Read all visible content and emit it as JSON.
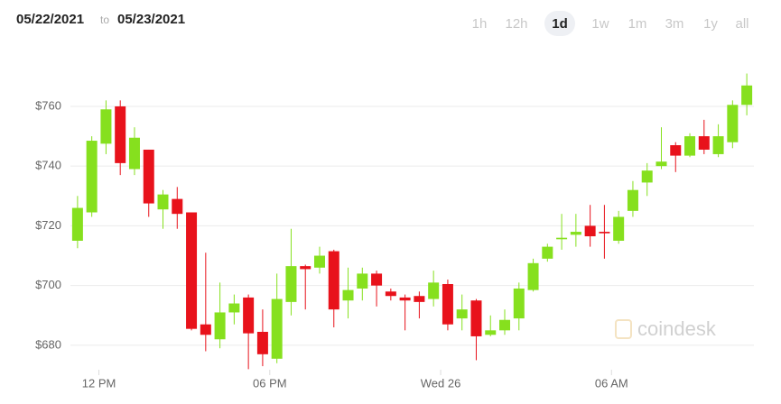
{
  "chart_data": {
    "type": "candlestick",
    "date_range": [
      "05/22/2021",
      "to",
      "05/23/2021"
    ],
    "range_options": [
      "1h",
      "12h",
      "1d",
      "1w",
      "1m",
      "3m",
      "1y",
      "all"
    ],
    "selected_range": "1d",
    "watermark": "coindesk",
    "up_color": "#86e01e",
    "down_color": "#e8121b",
    "grid": true,
    "ylim": [
      670,
      777.5
    ],
    "yticks": [
      {
        "value": 680,
        "label": "$680"
      },
      {
        "value": 700,
        "label": "$700"
      },
      {
        "value": 720,
        "label": "$720"
      },
      {
        "value": 740,
        "label": "$740"
      },
      {
        "value": 760,
        "label": "$760"
      }
    ],
    "xlim": [
      -0.5,
      47.5
    ],
    "xticks": [
      {
        "value": 1.5,
        "label": "12 PM"
      },
      {
        "value": 13.5,
        "label": "06 PM"
      },
      {
        "value": 25.5,
        "label": "Wed 26"
      },
      {
        "value": 37.5,
        "label": "06 AM"
      }
    ],
    "open": [
      715,
      724.5,
      747.5,
      760,
      739,
      745.5,
      725.5,
      729,
      724.5,
      687,
      682,
      691,
      696,
      684.5,
      675.5,
      694.5,
      706.5,
      706,
      711.5,
      695,
      699,
      704,
      698,
      696,
      696.5,
      695.5,
      700.5,
      689,
      695,
      683.5,
      685,
      689,
      698.5,
      709,
      715.5,
      717,
      720,
      718,
      715,
      725,
      734.5,
      740,
      747,
      743.5,
      750,
      744,
      748,
      760.5
    ],
    "high": [
      730,
      750,
      762,
      762,
      753,
      745.5,
      732,
      733,
      724.5,
      711,
      701,
      697,
      697,
      692,
      704,
      719,
      707,
      713,
      712,
      706,
      706,
      705,
      699,
      697,
      698,
      705,
      702,
      697,
      695.5,
      690,
      692,
      701,
      709,
      714,
      724,
      724,
      727,
      727,
      725,
      735,
      741,
      753,
      748,
      751,
      755.5,
      754,
      762,
      771
    ],
    "low": [
      712.5,
      723,
      744,
      737,
      737,
      723,
      719,
      719,
      685,
      678,
      679,
      687,
      672,
      673,
      674,
      690,
      692,
      704,
      686,
      689,
      695,
      693,
      695,
      685,
      689,
      693,
      685,
      685,
      675,
      683,
      683.5,
      685,
      698,
      708,
      712,
      713,
      713,
      709,
      714,
      723,
      730,
      739,
      738,
      743,
      744,
      743,
      746,
      757
    ],
    "close": [
      726,
      748.5,
      759,
      741,
      749.5,
      727.5,
      730.5,
      724,
      685.5,
      683.5,
      691,
      694,
      684,
      677,
      695.5,
      706.5,
      705.5,
      710,
      692,
      698.5,
      704,
      700,
      696.5,
      695,
      694.5,
      701,
      687,
      692,
      683,
      685,
      688.5,
      699,
      707.5,
      713,
      716,
      718,
      716.5,
      717.5,
      723,
      732,
      738.5,
      741.5,
      743.5,
      750,
      745.5,
      750,
      760.5,
      767
    ]
  }
}
